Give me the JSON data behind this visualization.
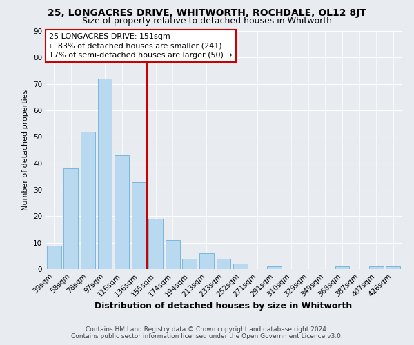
{
  "title": "25, LONGACRES DRIVE, WHITWORTH, ROCHDALE, OL12 8JT",
  "subtitle": "Size of property relative to detached houses in Whitworth",
  "xlabel": "Distribution of detached houses by size in Whitworth",
  "ylabel": "Number of detached properties",
  "bar_labels": [
    "39sqm",
    "58sqm",
    "78sqm",
    "97sqm",
    "116sqm",
    "136sqm",
    "155sqm",
    "174sqm",
    "194sqm",
    "213sqm",
    "233sqm",
    "252sqm",
    "271sqm",
    "291sqm",
    "310sqm",
    "329sqm",
    "349sqm",
    "368sqm",
    "387sqm",
    "407sqm",
    "426sqm"
  ],
  "bar_values": [
    9,
    38,
    52,
    72,
    43,
    33,
    19,
    11,
    4,
    6,
    4,
    2,
    0,
    1,
    0,
    0,
    0,
    1,
    0,
    1,
    1
  ],
  "bar_color": "#b8d9f0",
  "bar_edge_color": "#7ab8d9",
  "vline_color": "#cc0000",
  "vline_x_index": 6,
  "ylim": [
    0,
    90
  ],
  "yticks": [
    0,
    10,
    20,
    30,
    40,
    50,
    60,
    70,
    80,
    90
  ],
  "annotation_title": "25 LONGACRES DRIVE: 151sqm",
  "annotation_line1": "← 83% of detached houses are smaller (241)",
  "annotation_line2": "17% of semi-detached houses are larger (50) →",
  "footer_line1": "Contains HM Land Registry data © Crown copyright and database right 2024.",
  "footer_line2": "Contains public sector information licensed under the Open Government Licence v3.0.",
  "title_fontsize": 10,
  "subtitle_fontsize": 9,
  "xlabel_fontsize": 9,
  "ylabel_fontsize": 8,
  "tick_fontsize": 7.5,
  "annotation_fontsize": 8,
  "footer_fontsize": 6.5,
  "bg_color": "#e8ecf0"
}
